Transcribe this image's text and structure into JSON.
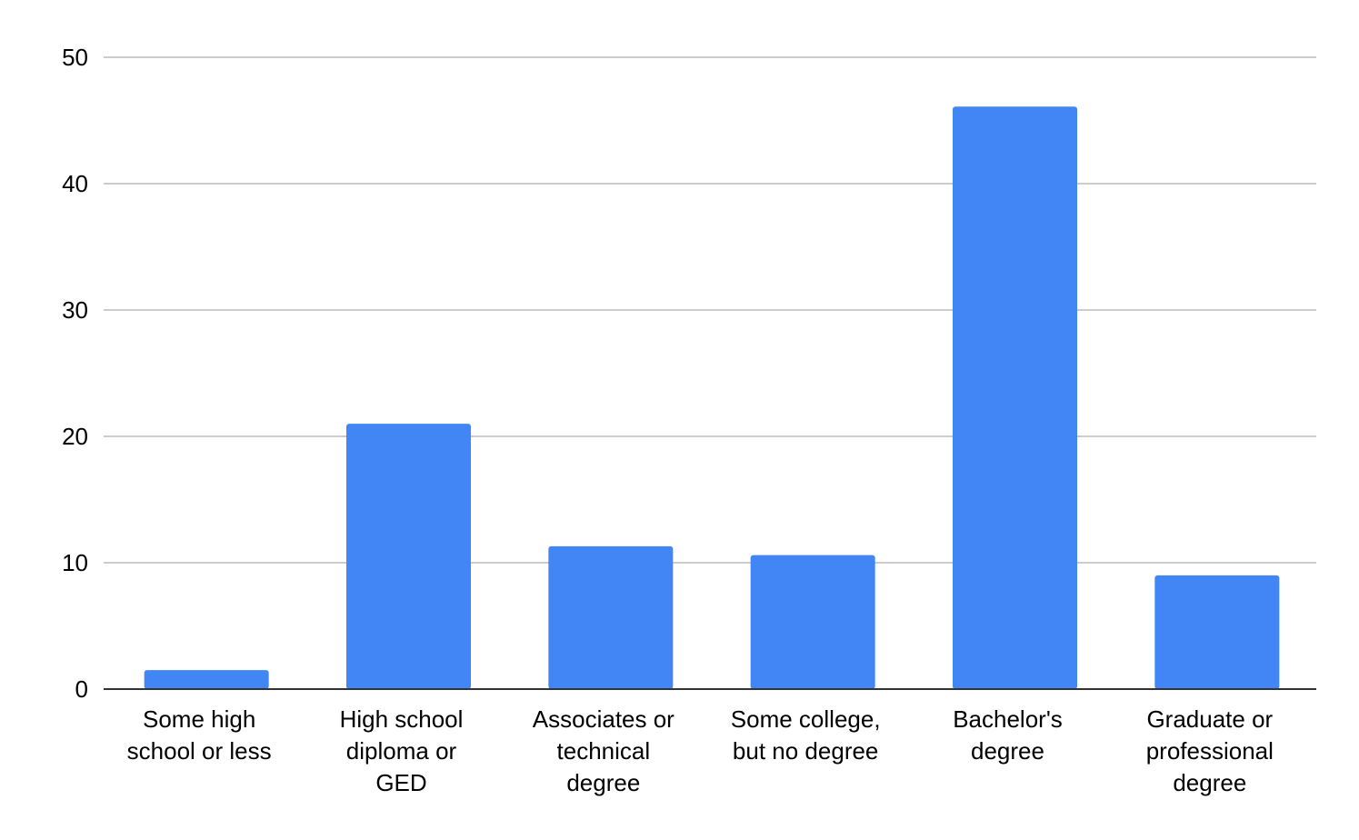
{
  "chart_data": {
    "type": "bar",
    "title": "",
    "xlabel": "",
    "ylabel": "",
    "ylim": [
      0,
      50
    ],
    "yticks": [
      0,
      10,
      20,
      30,
      40,
      50
    ],
    "grid": true,
    "legend": "none",
    "bar_color": "#4285f4",
    "categories": [
      [
        "Some high",
        "school or less"
      ],
      [
        "High school",
        "diploma or",
        "GED"
      ],
      [
        "Associates or",
        "technical",
        "degree"
      ],
      [
        "Some college,",
        "but no degree"
      ],
      [
        "Bachelor's",
        "degree"
      ],
      [
        "Graduate or",
        "professional",
        "degree"
      ]
    ],
    "values": [
      1.5,
      21,
      11.3,
      10.6,
      46.1,
      9
    ]
  }
}
